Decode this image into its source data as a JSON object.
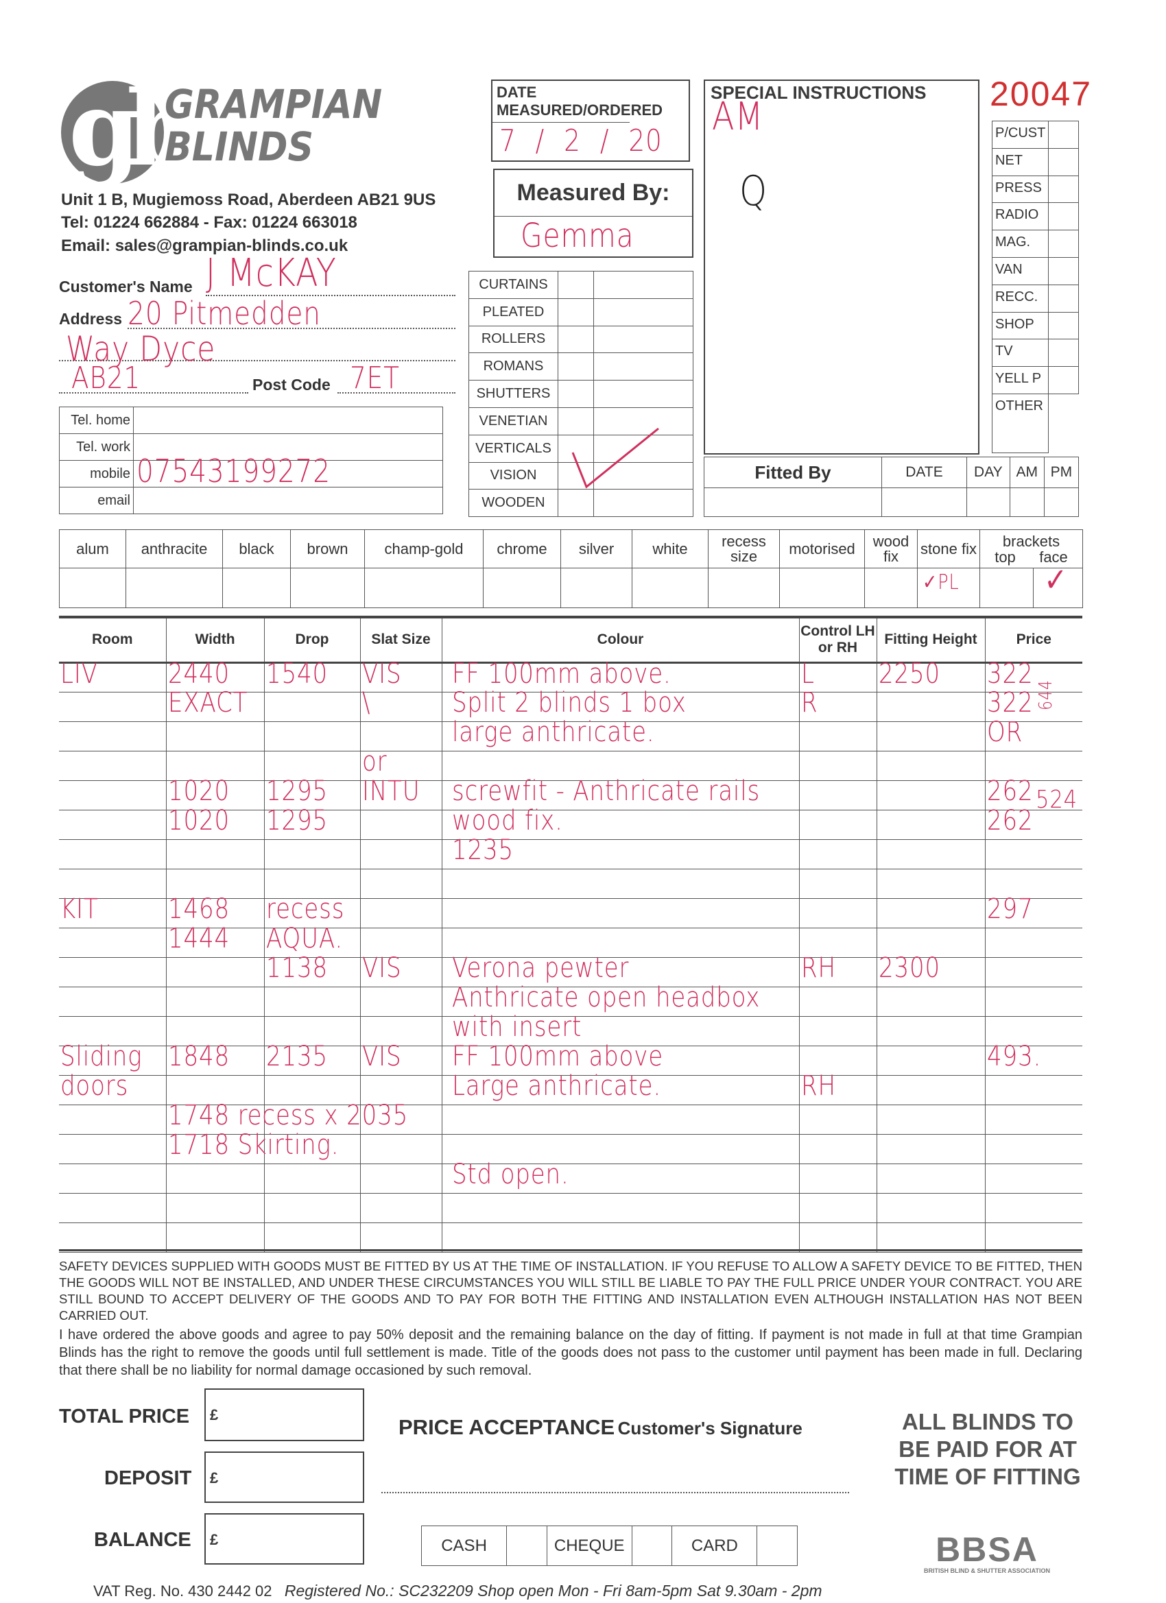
{
  "company": {
    "name_line1": "GRAPIAN",
    "name_line1_full": "GRAMPIAN",
    "name_line2": "BLINDS",
    "logo_letters": "gb",
    "address": "Unit 1 B, Mugiemoss Road, Aberdeen AB21 9US",
    "tel": "Tel: 01224 662884  -  Fax: 01224 663018",
    "email": "Email: sales@grampian-blinds.co.uk"
  },
  "order_number": "20047",
  "date_box": {
    "label": "DATE MEASURED/ORDERED",
    "value": "7 / 2 / 20"
  },
  "measured_by": {
    "label": "Measured By:",
    "value": "Gemma"
  },
  "special_instructions": {
    "label": "SPECIAL INSTRUCTIONS",
    "notes": [
      "AM",
      "Q"
    ]
  },
  "sources": [
    "P/CUST",
    "NET",
    "PRESS",
    "RADIO",
    "MAG.",
    "VAN",
    "RECC.",
    "SHOP",
    "TV",
    "YELL P",
    "OTHER"
  ],
  "customer": {
    "name_label": "Customer's Name",
    "name": "J McKAY",
    "address_label": "Address",
    "address_line1": "20 Pitmedden",
    "address_line2": "Way Dyce",
    "address_line3": "AB21",
    "postcode_label": "Post Code",
    "postcode": "7ET"
  },
  "phones": [
    {
      "label": "Tel. home",
      "value": ""
    },
    {
      "label": "Tel. work",
      "value": ""
    },
    {
      "label": "mobile",
      "value": "07543199272"
    },
    {
      "label": "email",
      "value": ""
    }
  ],
  "blind_types": [
    {
      "label": "CURTAINS",
      "checked": false
    },
    {
      "label": "PLEATED",
      "checked": false
    },
    {
      "label": "ROLLERS",
      "checked": false
    },
    {
      "label": "ROMANS",
      "checked": false
    },
    {
      "label": "SHUTTERS",
      "checked": false
    },
    {
      "label": "VENETIAN",
      "checked": false
    },
    {
      "label": "VERTICALS",
      "checked": false
    },
    {
      "label": "VISION",
      "checked": true
    },
    {
      "label": "WOODEN",
      "checked": false
    }
  ],
  "fitted": {
    "label": "Fitted By",
    "date": "DATE",
    "day": "DAY",
    "am": "AM",
    "pm": "PM"
  },
  "colour_options": [
    "alum",
    "anthracite",
    "black",
    "brown",
    "champ-gold",
    "chrome",
    "silver",
    "white",
    "recess size",
    "motorised",
    "wood fix",
    "stone fix"
  ],
  "brackets": {
    "label": "brackets",
    "top": "top",
    "face": "face"
  },
  "colour_marks": {
    "stone_fix": "✓PL",
    "brackets_face": "✓"
  },
  "table": {
    "headers": [
      "Room",
      "Width",
      "Drop",
      "Slat Size",
      "Colour",
      "Control LH or RH",
      "Fitting Height",
      "Price"
    ],
    "rows": [
      [
        "LIV",
        "2440",
        "1540",
        "VIS",
        "FF 100mm above.",
        "L",
        "2250",
        "322"
      ],
      [
        "",
        "EXACT",
        "",
        "\\",
        "Split 2 blinds 1 box",
        "R",
        "",
        "322"
      ],
      [
        "",
        "",
        "",
        "",
        "large anthricate.",
        "",
        "",
        "OR"
      ],
      [
        "",
        "",
        "",
        "or",
        "",
        "",
        "",
        ""
      ],
      [
        "",
        "1020",
        "1295",
        "INTU",
        "screwfit - Anthricate rails",
        "",
        "",
        "262"
      ],
      [
        "",
        "1020",
        "1295",
        "",
        "wood fix.",
        "",
        "",
        "262"
      ],
      [
        "",
        "",
        "",
        "",
        "1235",
        "",
        "",
        ""
      ],
      [
        "",
        "",
        "",
        "",
        "",
        "",
        "",
        ""
      ],
      [
        "KIT",
        "1468",
        "recess",
        "",
        "",
        "",
        "",
        "297"
      ],
      [
        "",
        "1444",
        "AQUA.",
        "",
        "",
        "",
        "",
        ""
      ],
      [
        "",
        "",
        "1138",
        "VIS",
        "Verona pewter",
        "RH",
        "2300",
        ""
      ],
      [
        "",
        "",
        "",
        "",
        "Anthricate open headbox",
        "",
        "",
        ""
      ],
      [
        "",
        "",
        "",
        "",
        "with insert",
        "",
        "",
        ""
      ],
      [
        "Sliding",
        "1848",
        "2135",
        "VIS",
        "FF 100mm above",
        "",
        "",
        "493."
      ],
      [
        "doors",
        "",
        "",
        "",
        "Large anthricate.",
        "RH",
        "",
        ""
      ],
      [
        "",
        "1748 recess x 2035",
        "",
        "",
        "",
        "",
        "",
        ""
      ],
      [
        "",
        "1718 Skirting.",
        "",
        "",
        "",
        "",
        "",
        ""
      ],
      [
        "",
        "",
        "",
        "",
        "Std open.",
        "",
        "",
        ""
      ],
      [
        "",
        "",
        "",
        "",
        "",
        "",
        "",
        ""
      ],
      [
        "",
        "",
        "",
        "",
        "",
        "",
        "",
        ""
      ]
    ],
    "price_totals": [
      "644",
      "524"
    ]
  },
  "terms": "SAFETY DEVICES SUPPLIED WITH GOODS MUST BE FITTED BY US AT THE TIME OF INSTALLATION. IF YOU REFUSE TO ALLOW A SAFETY DEVICE TO BE FITTED, THEN THE GOODS WILL NOT BE INSTALLED, AND UNDER THESE CIRCUMSTANCES YOU WILL STILL BE LIABLE TO PAY THE FULL PRICE UNDER YOUR CONTRACT. YOU ARE STILL BOUND TO ACCEPT DELIVERY OF THE GOODS AND TO PAY FOR BOTH THE FITTING AND INSTALLATION EVEN ALTHOUGH INSTALLATION HAS NOT BEEN CARRIED OUT.",
  "declaration": "I have ordered the above goods and agree to pay 50% deposit and the remaining balance on the day of fitting. If payment is not made in full at that time Grampian Blinds has the right to remove the goods until full settlement is made. Title of the goods does not pass to the customer until payment has been made in full. Declaring that there shall be no liability for normal damage occasioned by such removal.",
  "totals": {
    "total_label": "TOTAL PRICE",
    "deposit_label": "DEPOSIT",
    "balance_label": "BALANCE",
    "currency": "£"
  },
  "acceptance": {
    "title": "PRICE ACCEPTANCE",
    "sub": "Customer's Signature"
  },
  "payment": [
    "CASH",
    "CHEQUE",
    "CARD"
  ],
  "notice": "ALL BLINDS TO BE PAID FOR AT TIME OF FITTING",
  "bbsa": {
    "logo": "BBSA",
    "sub": "BRITISH BLIND & SHUTTER ASSOCIATION"
  },
  "footer": {
    "vat": "VAT Reg. No. 430 2442 02",
    "registered": "Registered No.: SC232209  Shop open Mon - Fri 8am-5pm  Sat 9.30am - 2pm"
  },
  "colors": {
    "ink": "#d0305e",
    "order_number": "#d03030",
    "print": "#333333"
  }
}
